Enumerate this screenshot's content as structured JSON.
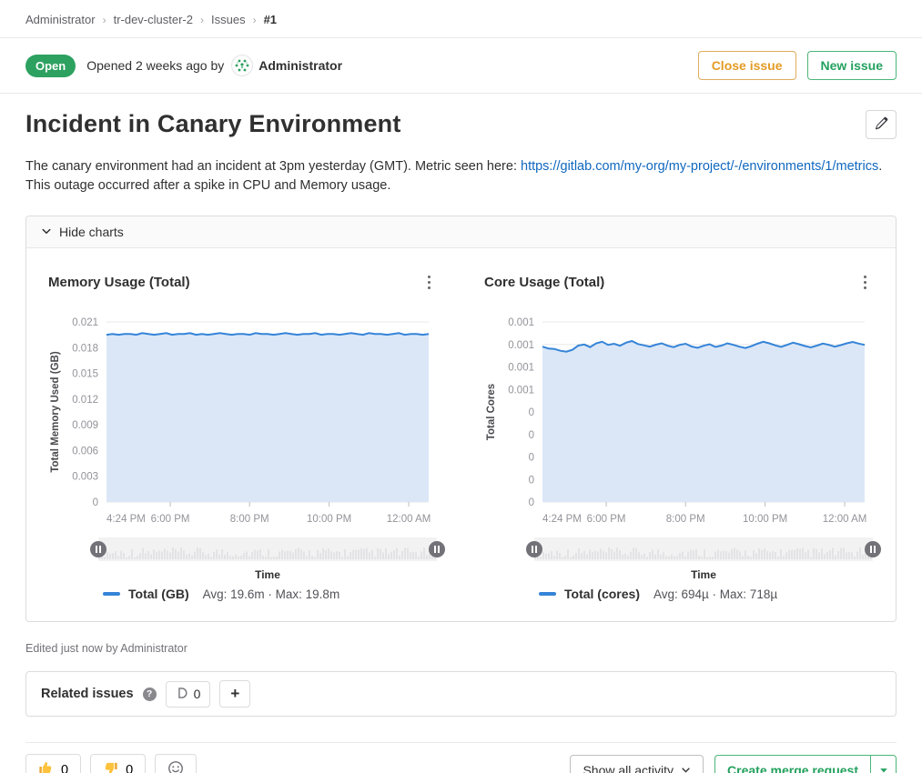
{
  "breadcrumb": {
    "items": [
      "Administrator",
      "tr-dev-cluster-2",
      "Issues"
    ],
    "current": "#1"
  },
  "status": {
    "badge": "Open",
    "opened_text": "Opened 2 weeks ago by",
    "author": "Administrator"
  },
  "actions": {
    "close_issue": "Close issue",
    "new_issue": "New issue"
  },
  "issue": {
    "title": "Incident in Canary Environment",
    "description_pre": "The canary environment had an incident at 3pm yesterday (GMT). Metric seen here: ",
    "description_link": "https://gitlab.com/my-org/my-project/-/environments/1/metrics",
    "description_post": ".",
    "description_line2": "This outage occurred after a spike in CPU and Memory usage."
  },
  "charts_panel": {
    "toggle_label": "Hide charts"
  },
  "chart_data": [
    {
      "type": "area",
      "title": "Memory Usage (Total)",
      "ylabel": "Total Memory Used (GB)",
      "xlabel": "Time",
      "ylim": [
        0,
        0.021
      ],
      "yticks": [
        "0.021",
        "0.018",
        "0.015",
        "0.012",
        "0.009",
        "0.006",
        "0.003",
        "0"
      ],
      "xticks": [
        "4:24 PM",
        "6:00 PM",
        "8:00 PM",
        "10:00 PM",
        "12:00 AM"
      ],
      "xtick_pos": [
        0,
        0.198,
        0.444,
        0.691,
        0.938
      ],
      "legend": {
        "series": "Total (GB)",
        "stats": "Avg: 19.6m · Max: 19.8m"
      },
      "values": [
        0.0195,
        0.0196,
        0.0195,
        0.0196,
        0.0196,
        0.0195,
        0.0197,
        0.0196,
        0.0195,
        0.0196,
        0.0197,
        0.0195,
        0.0196,
        0.0196,
        0.0197,
        0.0195,
        0.0196,
        0.0195,
        0.0196,
        0.0197,
        0.0196,
        0.0195,
        0.0196,
        0.0196,
        0.0195,
        0.0197,
        0.0196,
        0.0196,
        0.0195,
        0.0196,
        0.0197,
        0.0196,
        0.0195,
        0.0196,
        0.0196,
        0.0197,
        0.0195,
        0.0196,
        0.0196,
        0.0195,
        0.0196,
        0.0197,
        0.0196,
        0.0195,
        0.0197,
        0.0196,
        0.0196,
        0.0195,
        0.0196,
        0.0197,
        0.0195,
        0.0196,
        0.0196,
        0.0195,
        0.0196
      ]
    },
    {
      "type": "area",
      "title": "Core Usage (Total)",
      "ylabel": "Total Cores",
      "xlabel": "Time",
      "ylim": [
        0,
        0.0008
      ],
      "yticks": [
        "0.001",
        "0.001",
        "0.001",
        "0.001",
        "0",
        "0",
        "0",
        "0",
        "0"
      ],
      "xticks": [
        "4:24 PM",
        "6:00 PM",
        "8:00 PM",
        "10:00 PM",
        "12:00 AM"
      ],
      "xtick_pos": [
        0,
        0.198,
        0.444,
        0.691,
        0.938
      ],
      "legend": {
        "series": "Total (cores)",
        "stats": "Avg: 694µ · Max: 718µ"
      },
      "values": [
        0.00069,
        0.000682,
        0.00068,
        0.000672,
        0.000668,
        0.000676,
        0.000695,
        0.0007,
        0.000688,
        0.000705,
        0.000712,
        0.000698,
        0.000703,
        0.000694,
        0.000708,
        0.000715,
        0.000702,
        0.000696,
        0.00069,
        0.000699,
        0.000705,
        0.000694,
        0.000688,
        0.000698,
        0.000703,
        0.000691,
        0.000685,
        0.000694,
        0.000701,
        0.000689,
        0.000695,
        0.000705,
        0.000698,
        0.00069,
        0.000684,
        0.000692,
        0.000703,
        0.000712,
        0.000705,
        0.000696,
        0.000689,
        0.000698,
        0.000708,
        0.000701,
        0.000693,
        0.000687,
        0.000695,
        0.000704,
        0.000698,
        0.00069,
        0.000697,
        0.000705,
        0.000711,
        0.000704,
        0.000698
      ]
    }
  ],
  "edited": "Edited just now by Administrator",
  "related_issues": {
    "label": "Related issues",
    "count": "0",
    "add_label": "+"
  },
  "reactions": {
    "thumbs_up_count": "0",
    "thumbs_down_count": "0"
  },
  "footer": {
    "activity_filter": "Show all activity",
    "create_mr": "Create merge request"
  },
  "colors": {
    "open_badge": "#2da160",
    "close_issue": "#e49b25",
    "new_issue": "#24a15e",
    "link": "#1068bf",
    "chart_line": "#3584d8",
    "chart_fill": "#dbe7f7",
    "gridline": "#e8e8e8",
    "emoji_yellow": "#fdc23c"
  }
}
